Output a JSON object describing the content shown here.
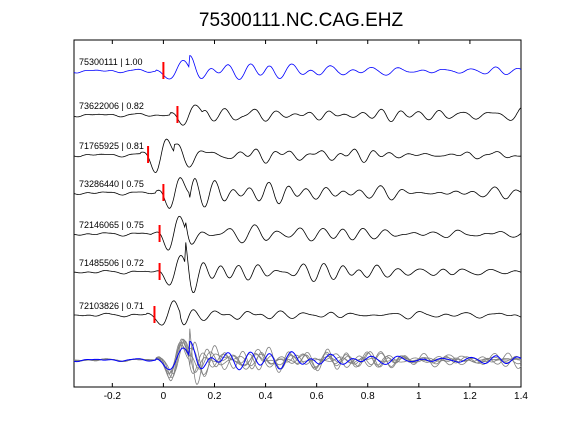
{
  "chart_data": {
    "type": "line",
    "title": "75300111.NC.CAG.EHZ",
    "xlabel": "",
    "ylabel": "",
    "xlim": [
      -0.35,
      1.4
    ],
    "x_ticks": [
      -0.2,
      0,
      0.2,
      0.4,
      0.6,
      0.8,
      1,
      1.2,
      1.4
    ],
    "x_tick_labels": [
      "-0.2",
      "0",
      "0.2",
      "0.4",
      "0.6",
      "0.8",
      "1",
      "1.2",
      "1.4"
    ],
    "grid": false,
    "colors": {
      "reference": "#0000ff",
      "trace": "#000000",
      "pick": "#ff0000",
      "stack_gray": "#808080"
    },
    "traces": [
      {
        "label": "75300111 | 1.00",
        "id": "75300111",
        "correlation": 1.0,
        "pick_time": 0.0,
        "reference": true
      },
      {
        "label": "73622006 | 0.82",
        "id": "73622006",
        "correlation": 0.82,
        "pick_time": 0.055
      },
      {
        "label": "71765925 | 0.81",
        "id": "71765925",
        "correlation": 0.81,
        "pick_time": -0.06
      },
      {
        "label": "73286440 | 0.75",
        "id": "73286440",
        "correlation": 0.75,
        "pick_time": 0.0
      },
      {
        "label": "72146065 | 0.75",
        "id": "72146065",
        "correlation": 0.75,
        "pick_time": -0.015
      },
      {
        "label": "71485506 | 0.72",
        "id": "71485506",
        "correlation": 0.72,
        "pick_time": -0.015
      },
      {
        "label": "72103826 | 0.71",
        "id": "72103826",
        "correlation": 0.71,
        "pick_time": -0.035
      }
    ]
  }
}
